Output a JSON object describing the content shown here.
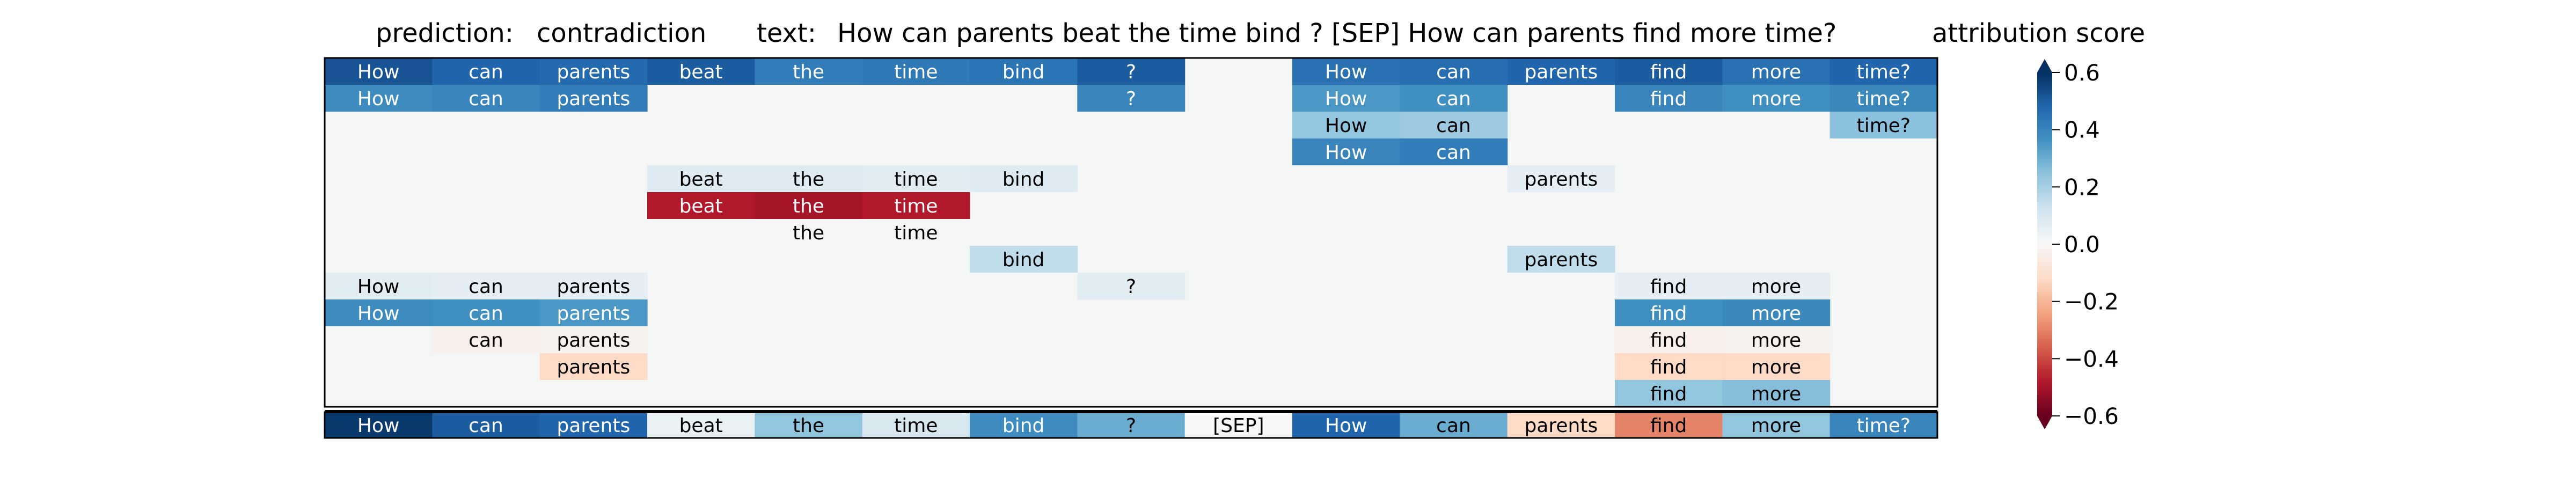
{
  "chart_data": {
    "type": "heatmap",
    "title": {
      "prediction_label": "prediction:",
      "prediction_value": "contradiction",
      "text_label": "text:",
      "text_value": "How can parents beat the time bind ? [SEP] How can parents find more time?"
    },
    "colorbar": {
      "label": "attribution score",
      "ticks": [
        "0.6",
        "0.4",
        "0.2",
        "0.0",
        "−0.2",
        "−0.4",
        "−0.6"
      ],
      "tick_values": [
        0.6,
        0.4,
        0.2,
        0.0,
        -0.2,
        -0.4,
        -0.6
      ],
      "vmin": -0.6,
      "vmax": 0.6,
      "colormap": "RdBu"
    },
    "tokens": [
      "How",
      "can",
      "parents",
      "beat",
      "the",
      "time",
      "bind",
      "?",
      "[SEP]",
      "How",
      "can",
      "parents",
      "find",
      "more",
      "time?"
    ],
    "rows": [
      [
        0.52,
        0.48,
        0.47,
        0.5,
        0.42,
        0.43,
        0.44,
        0.5,
        null,
        0.45,
        0.46,
        0.48,
        0.5,
        0.45,
        0.48
      ],
      [
        0.38,
        0.4,
        0.42,
        null,
        null,
        null,
        null,
        0.4,
        null,
        0.35,
        0.37,
        null,
        0.4,
        0.37,
        0.39
      ],
      [
        null,
        null,
        null,
        null,
        null,
        null,
        null,
        null,
        null,
        0.24,
        0.22,
        null,
        null,
        null,
        0.25
      ],
      [
        null,
        null,
        null,
        null,
        null,
        null,
        null,
        null,
        null,
        0.4,
        0.42,
        null,
        null,
        null,
        null
      ],
      [
        null,
        null,
        null,
        0.08,
        0.08,
        0.07,
        0.08,
        null,
        null,
        null,
        null,
        0.06,
        null,
        null,
        null
      ],
      [
        null,
        null,
        null,
        -0.48,
        -0.5,
        -0.48,
        null,
        null,
        null,
        null,
        null,
        null,
        null,
        null,
        null
      ],
      [
        null,
        null,
        null,
        null,
        0.01,
        0.01,
        null,
        null,
        null,
        null,
        null,
        null,
        null,
        null,
        null
      ],
      [
        null,
        null,
        null,
        null,
        null,
        null,
        0.15,
        null,
        null,
        null,
        null,
        0.15,
        null,
        null,
        null
      ],
      [
        0.07,
        0.06,
        0.06,
        null,
        null,
        null,
        null,
        0.07,
        null,
        null,
        null,
        null,
        0.06,
        0.06,
        null
      ],
      [
        0.38,
        0.37,
        0.35,
        null,
        null,
        null,
        null,
        null,
        null,
        null,
        null,
        null,
        0.37,
        0.39,
        null
      ],
      [
        null,
        -0.03,
        -0.02,
        null,
        null,
        null,
        null,
        null,
        null,
        null,
        null,
        null,
        -0.03,
        -0.02,
        null
      ],
      [
        null,
        null,
        -0.12,
        null,
        null,
        null,
        null,
        null,
        null,
        null,
        null,
        null,
        -0.12,
        -0.12,
        null
      ],
      [
        null,
        null,
        null,
        null,
        null,
        null,
        null,
        null,
        null,
        null,
        null,
        null,
        0.24,
        0.26,
        null
      ]
    ],
    "summary_row": [
      0.58,
      0.5,
      0.48,
      0.04,
      0.24,
      0.1,
      0.38,
      0.3,
      0.0,
      0.48,
      0.3,
      -0.12,
      -0.3,
      0.24,
      0.4
    ]
  }
}
